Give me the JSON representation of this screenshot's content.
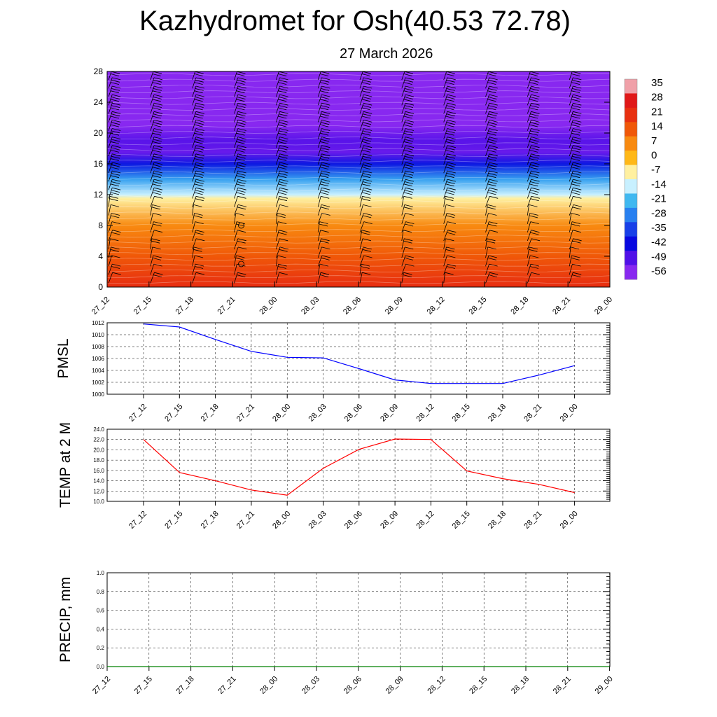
{
  "header": {
    "title": "Kazhydromet for Osh(40.53 72.78)",
    "subtitle": "27 March 2026"
  },
  "chart_data": [
    {
      "type": "heatmap",
      "name": "vertical-temperature-cross-section",
      "x_ticks": [
        "27_12",
        "27_15",
        "27_18",
        "27_21",
        "28_00",
        "28_03",
        "28_06",
        "28_09",
        "28_12",
        "28_15",
        "28_18",
        "28_21",
        "29_00"
      ],
      "y_ticks": [
        "0",
        "4",
        "8",
        "12",
        "16",
        "20",
        "24",
        "28"
      ],
      "ylim": [
        0,
        28
      ],
      "colorbar": {
        "labels": [
          "35",
          "28",
          "21",
          "14",
          "7",
          "0",
          "-7",
          "-14",
          "-21",
          "-28",
          "-35",
          "-42",
          "-49",
          "-56"
        ],
        "colors": [
          "#f0a0a8",
          "#e01818",
          "#e83010",
          "#f05808",
          "#f88a10",
          "#ffb818",
          "#fff0a0",
          "#c8f0ff",
          "#40b8f0",
          "#2880f0",
          "#1840e8",
          "#0808e0",
          "#5010e8",
          "#8828f0"
        ]
      },
      "temperature_profile": [
        {
          "height": 0,
          "temp": 22
        },
        {
          "height": 4,
          "temp": 14
        },
        {
          "height": 8,
          "temp": 7
        },
        {
          "height": 11.5,
          "temp": -7
        },
        {
          "height": 12,
          "temp": -14
        },
        {
          "height": 14,
          "temp": -24
        },
        {
          "height": 16,
          "temp": -40
        },
        {
          "height": 17.5,
          "temp": -52
        },
        {
          "height": 19,
          "temp": -50
        },
        {
          "height": 21,
          "temp": -56
        },
        {
          "height": 28,
          "temp": -56
        }
      ]
    },
    {
      "type": "line",
      "name": "pmsl",
      "ylabel": "PMSL",
      "x_ticks": [
        "27_12",
        "27_15",
        "27_18",
        "27_21",
        "28_00",
        "28_03",
        "28_06",
        "28_09",
        "28_12",
        "28_15",
        "28_18",
        "28_21",
        "29_00"
      ],
      "y_ticks": [
        "1000",
        "1002",
        "1004",
        "1006",
        "1008",
        "1010",
        "1012"
      ],
      "ylim": [
        1000,
        1012
      ],
      "color": "#0000ff",
      "values": [
        1011.8,
        1011.3,
        1009.2,
        1007.2,
        1006.2,
        1006.1,
        1004.3,
        1002.4,
        1001.8,
        1001.8,
        1001.8,
        1003.2,
        1004.8
      ]
    },
    {
      "type": "line",
      "name": "temp-2m",
      "ylabel": "TEMP at 2 M",
      "x_ticks": [
        "27_12",
        "27_15",
        "27_18",
        "27_21",
        "28_00",
        "28_03",
        "28_06",
        "28_09",
        "28_12",
        "28_15",
        "28_18",
        "28_21",
        "29_00"
      ],
      "y_ticks": [
        "10.0",
        "12.0",
        "14.0",
        "16.0",
        "18.0",
        "20.0",
        "22.0",
        "24.0"
      ],
      "ylim": [
        10,
        24
      ],
      "color": "#ff0000",
      "values": [
        22.0,
        15.6,
        14.0,
        12.2,
        11.2,
        16.4,
        20.1,
        22.1,
        22.0,
        15.9,
        14.4,
        13.3,
        11.7
      ]
    },
    {
      "type": "line",
      "name": "precipitation",
      "ylabel": "PRECIP, mm",
      "x_ticks": [
        "27_12",
        "27_15",
        "27_18",
        "27_21",
        "28_00",
        "28_03",
        "28_06",
        "28_09",
        "28_12",
        "28_15",
        "28_18",
        "28_21",
        "29_00"
      ],
      "y_ticks": [
        "0.0",
        "0.2",
        "0.4",
        "0.6",
        "0.8",
        "1.0"
      ],
      "ylim": [
        0,
        1
      ],
      "color": "#008000",
      "values": [
        0,
        0,
        0,
        0,
        0,
        0,
        0,
        0,
        0,
        0,
        0,
        0,
        0
      ]
    }
  ]
}
